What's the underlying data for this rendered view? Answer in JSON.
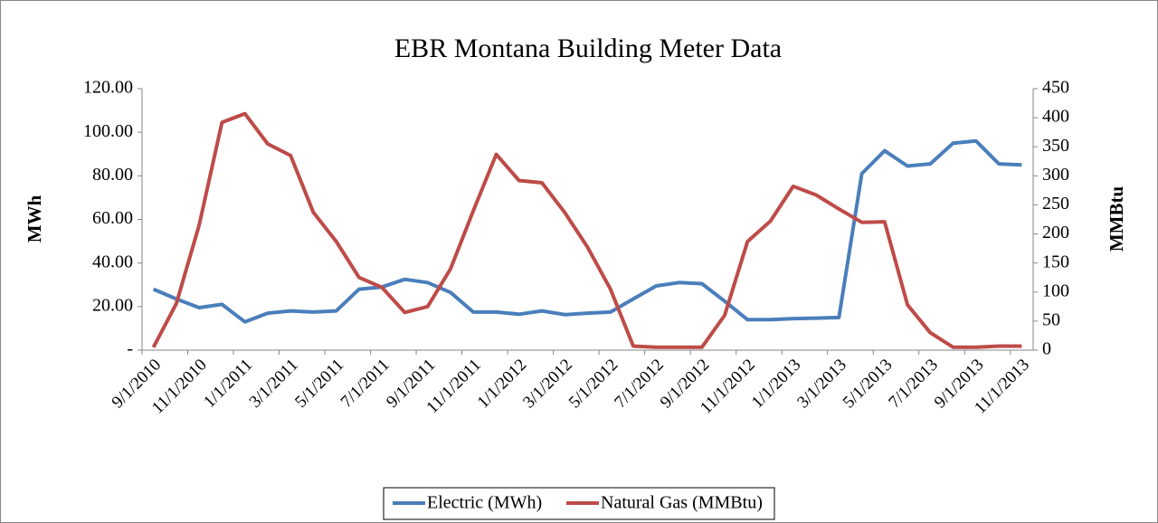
{
  "chart_data": {
    "type": "line",
    "title": "EBR Montana Building Meter Data",
    "y_label": "MWh",
    "y2_label": "MMBtu",
    "categories": [
      "9/1/2010",
      null,
      "11/1/2010",
      null,
      "1/1/2011",
      null,
      "3/1/2011",
      null,
      "5/1/2011",
      null,
      "7/1/2011",
      null,
      "9/1/2011",
      null,
      "11/1/2011",
      null,
      "1/1/2012",
      null,
      "3/1/2012",
      null,
      "5/1/2012",
      null,
      "7/1/2012",
      null,
      "9/1/2012",
      null,
      "11/1/2012",
      null,
      "1/1/2013",
      null,
      "3/1/2013",
      null,
      "5/1/2013",
      null,
      "7/1/2013",
      null,
      "9/1/2013",
      null,
      "11/1/2013"
    ],
    "series": [
      {
        "name": "Electric (MWh)",
        "color": "#4a7ebb",
        "values": [
          28,
          23.5,
          19.5,
          21,
          13,
          17,
          18,
          17.5,
          18,
          28,
          29,
          32.5,
          31,
          26.5,
          17.5,
          17.5,
          16.5,
          18,
          16.3,
          17,
          17.5,
          23.5,
          29.5,
          31,
          30.5,
          22.5,
          14,
          14,
          14.5,
          14.7,
          15,
          81,
          91.5,
          84.5,
          85.5,
          95,
          96,
          85.5,
          85
        ]
      },
      {
        "name": "Natural Gas (MMBtu)",
        "color": "#be4b48",
        "axis": "y2",
        "values": [
          5,
          80,
          215,
          392,
          407,
          355,
          335,
          237,
          187,
          125,
          108,
          65,
          75,
          140,
          240,
          337,
          292,
          288,
          237,
          177,
          105,
          7,
          5,
          5,
          5,
          60,
          187,
          222,
          282,
          267,
          243,
          220,
          221,
          78,
          30,
          5,
          5,
          7,
          7
        ]
      }
    ],
    "ylim": [
      0,
      120
    ],
    "yticks": [
      {
        "value": 0,
        "label": "-"
      },
      {
        "value": 20,
        "label": "20.00"
      },
      {
        "value": 40,
        "label": "40.00"
      },
      {
        "value": 60,
        "label": "60.00"
      },
      {
        "value": 80,
        "label": "80.00"
      },
      {
        "value": 100,
        "label": "100.00"
      },
      {
        "value": 120,
        "label": "120.00"
      }
    ],
    "y2lim": [
      0,
      450
    ],
    "y2ticks": [
      0,
      50,
      100,
      150,
      200,
      250,
      300,
      350,
      400,
      450
    ],
    "legend": "bottom",
    "grid": false
  }
}
